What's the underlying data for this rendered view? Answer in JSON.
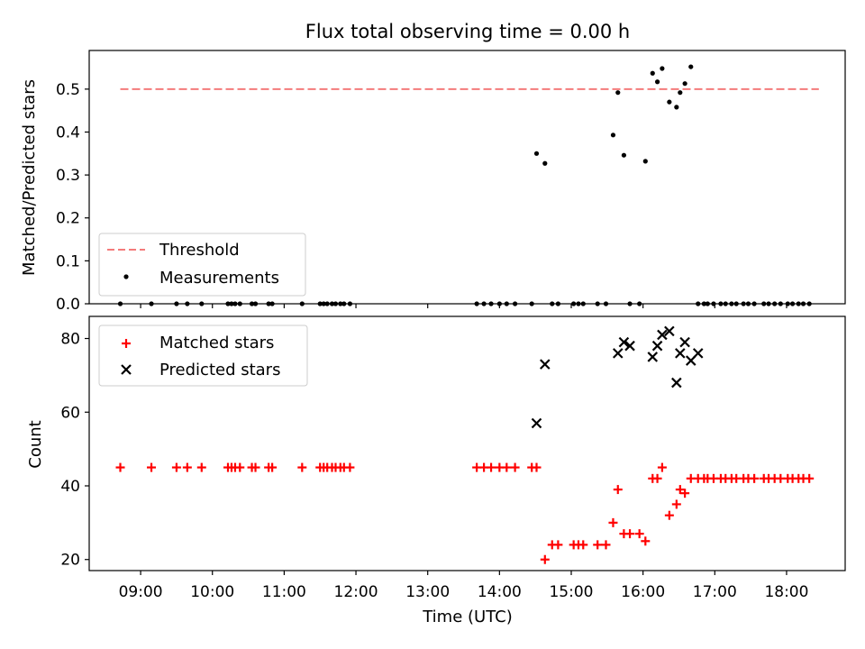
{
  "title": "Flux total observing time = 0.00 h",
  "colors": {
    "threshold": "#f47b7b",
    "measurement": "#000000",
    "matched": "#ff0000",
    "predicted": "#000000"
  },
  "chart_data": [
    {
      "type": "scatter",
      "panel": "top",
      "title": "Flux total observing time = 0.00 h",
      "xlabel": "",
      "ylabel": "Matched/Predicted stars",
      "xlim": [
        "08:17",
        "18:49"
      ],
      "ylim": [
        0,
        0.59
      ],
      "yticks": [
        "0.0",
        "0.1",
        "0.2",
        "0.3",
        "0.4",
        "0.5"
      ],
      "grid": false,
      "legend": "lower-left",
      "series": [
        {
          "name": "Threshold",
          "type": "line",
          "style": "dashed",
          "x": [
            "08:43",
            "18:27"
          ],
          "y": [
            0.5,
            0.5
          ]
        },
        {
          "name": "Measurements",
          "type": "scatter",
          "x": [
            "08:43",
            "09:09",
            "09:30",
            "09:39",
            "09:51",
            "10:13",
            "10:16",
            "10:19",
            "10:23",
            "10:33",
            "10:36",
            "10:47",
            "10:50",
            "11:15",
            "11:30",
            "11:33",
            "11:36",
            "11:40",
            "11:43",
            "11:47",
            "11:50",
            "11:55",
            "13:41",
            "13:47",
            "13:53",
            "14:00",
            "14:06",
            "14:13",
            "14:27",
            "14:31",
            "14:38",
            "14:44",
            "14:49",
            "15:02",
            "15:06",
            "15:10",
            "15:22",
            "15:29",
            "15:35",
            "15:39",
            "15:44",
            "15:49",
            "15:57",
            "16:02",
            "16:08",
            "16:12",
            "16:16",
            "16:22",
            "16:28",
            "16:31",
            "16:35",
            "16:40",
            "16:46",
            "16:51",
            "16:54",
            "16:59",
            "17:05",
            "17:09",
            "17:14",
            "17:18",
            "17:24",
            "17:28",
            "17:33",
            "17:41",
            "17:45",
            "17:50",
            "17:55",
            "18:01",
            "18:05",
            "18:10",
            "18:14",
            "18:19"
          ],
          "y": [
            0,
            0,
            0,
            0,
            0,
            0,
            0,
            0,
            0,
            0,
            0,
            0,
            0,
            0,
            0,
            0,
            0,
            0,
            0,
            0,
            0,
            0,
            0,
            0,
            0,
            0,
            0,
            0,
            0,
            0.35,
            0.327,
            0,
            0,
            0,
            0,
            0,
            0,
            0,
            0.393,
            0.492,
            0.346,
            0,
            0,
            0.332,
            0.537,
            0.517,
            0.548,
            0.47,
            0.458,
            0.492,
            0.513,
            0.552,
            0,
            0,
            0,
            0,
            0,
            0,
            0,
            0,
            0,
            0,
            0,
            0,
            0,
            0,
            0,
            0,
            0,
            0,
            0,
            0
          ]
        }
      ]
    },
    {
      "type": "scatter",
      "panel": "bottom",
      "title": "",
      "xlabel": "Time (UTC)",
      "ylabel": "Count",
      "xlim": [
        "08:17",
        "18:49"
      ],
      "ylim": [
        17,
        86
      ],
      "yticks": [
        "20",
        "40",
        "60",
        "80"
      ],
      "xticks": [
        "09:00",
        "10:00",
        "11:00",
        "12:00",
        "13:00",
        "14:00",
        "15:00",
        "16:00",
        "17:00",
        "18:00"
      ],
      "grid": false,
      "legend": "upper-left",
      "series": [
        {
          "name": "Matched stars",
          "marker": "+",
          "x": [
            "08:43",
            "09:09",
            "09:30",
            "09:39",
            "09:51",
            "10:13",
            "10:16",
            "10:19",
            "10:23",
            "10:33",
            "10:36",
            "10:47",
            "10:50",
            "11:15",
            "11:30",
            "11:33",
            "11:36",
            "11:40",
            "11:43",
            "11:47",
            "11:50",
            "11:55",
            "13:41",
            "13:47",
            "13:53",
            "14:00",
            "14:06",
            "14:13",
            "14:27",
            "14:31",
            "14:38",
            "14:44",
            "14:49",
            "15:02",
            "15:06",
            "15:10",
            "15:22",
            "15:29",
            "15:35",
            "15:39",
            "15:44",
            "15:49",
            "15:57",
            "16:02",
            "16:08",
            "16:12",
            "16:16",
            "16:22",
            "16:28",
            "16:31",
            "16:35",
            "16:40",
            "16:46",
            "16:51",
            "16:54",
            "16:59",
            "17:05",
            "17:09",
            "17:14",
            "17:18",
            "17:24",
            "17:28",
            "17:33",
            "17:41",
            "17:45",
            "17:50",
            "17:55",
            "18:01",
            "18:05",
            "18:10",
            "18:14",
            "18:19"
          ],
          "y": [
            45,
            45,
            45,
            45,
            45,
            45,
            45,
            45,
            45,
            45,
            45,
            45,
            45,
            45,
            45,
            45,
            45,
            45,
            45,
            45,
            45,
            45,
            45,
            45,
            45,
            45,
            45,
            45,
            45,
            45,
            20,
            24,
            24,
            24,
            24,
            24,
            24,
            24,
            30,
            39,
            27,
            27,
            27,
            25,
            42,
            42,
            45,
            32,
            35,
            39,
            38,
            42,
            42,
            42,
            42,
            42,
            42,
            42,
            42,
            42,
            42,
            42,
            42,
            42,
            42,
            42,
            42,
            42,
            42,
            42,
            42,
            42
          ]
        },
        {
          "name": "Predicted stars",
          "marker": "x",
          "x": [
            "14:31",
            "14:38",
            "15:39",
            "15:44",
            "15:49",
            "16:08",
            "16:12",
            "16:16",
            "16:22",
            "16:28",
            "16:31",
            "16:35",
            "16:40",
            "16:46"
          ],
          "y": [
            57,
            73,
            76,
            79,
            78,
            75,
            78,
            81,
            82,
            68,
            76,
            79,
            74,
            76
          ]
        }
      ]
    }
  ]
}
